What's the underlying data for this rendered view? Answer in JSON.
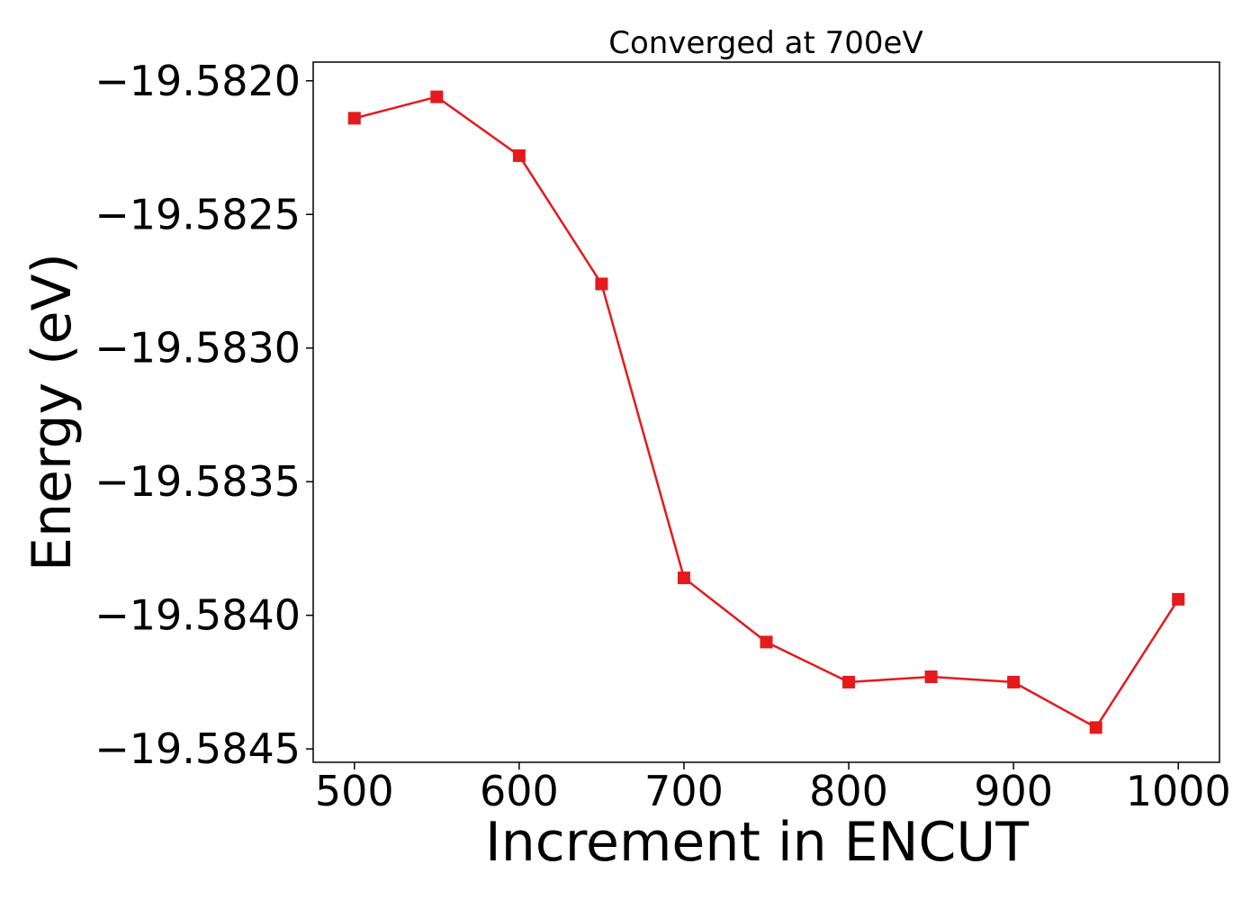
{
  "chart_data": {
    "type": "line",
    "title": "Converged at 700eV",
    "xlabel": "Increment in ENCUT",
    "ylabel": "Energy (eV)",
    "xlim": [
      475,
      1025
    ],
    "ylim": [
      -19.58455,
      -19.58193
    ],
    "x_ticks": [
      500,
      600,
      700,
      800,
      900,
      1000
    ],
    "x_tick_labels": [
      "500",
      "600",
      "700",
      "800",
      "900",
      "1000"
    ],
    "y_ticks": [
      -19.582,
      -19.5825,
      -19.583,
      -19.5835,
      -19.584,
      -19.5845
    ],
    "y_tick_labels": [
      "−19.5820",
      "−19.5825",
      "−19.5830",
      "−19.5835",
      "−19.5840",
      "−19.5845"
    ],
    "grid": false,
    "series": [
      {
        "color": "#e41a1c",
        "marker": "square",
        "x": [
          500,
          550,
          600,
          650,
          700,
          750,
          800,
          850,
          900,
          950,
          1000
        ],
        "values": [
          -19.58214,
          -19.58206,
          -19.58228,
          -19.58276,
          -19.58386,
          -19.5841,
          -19.58425,
          -19.58423,
          -19.58425,
          -19.58442,
          -19.58394
        ]
      }
    ]
  }
}
